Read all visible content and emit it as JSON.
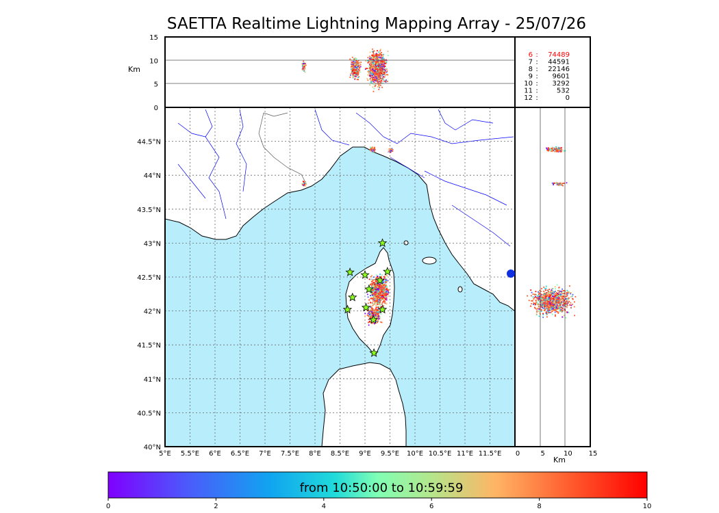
{
  "title": "SAETTA Realtime Lightning Mapping Array - 25/07/26",
  "top_panel": {
    "axis_label": "Km",
    "y_ticks": [
      "0",
      "5",
      "10",
      "15"
    ]
  },
  "right_panel": {
    "axis_label": "Km",
    "x_ticks": [
      "0",
      "5",
      "10",
      "15"
    ]
  },
  "map": {
    "lon_ticks": [
      "5°E",
      "5.5°E",
      "6°E",
      "6.5°E",
      "7°E",
      "7.5°E",
      "8°E",
      "8.5°E",
      "9°E",
      "9.5°E",
      "10°E",
      "10.5°E",
      "11°E",
      "11.5°E"
    ],
    "lat_ticks": [
      "40°N",
      "40.5°N",
      "41°N",
      "41.5°N",
      "42°N",
      "42.5°N",
      "43°N",
      "43.5°N",
      "44°N",
      "44.5°N"
    ],
    "lon_range": [
      5,
      12
    ],
    "lat_range": [
      40,
      45
    ],
    "sea_color": "#b8eefc",
    "land_color": "#ffffff",
    "coast_color": "#000000",
    "river_color": "#0000ff",
    "border_color": "#555555"
  },
  "station_counts": [
    {
      "stations": "6",
      "count": "74489",
      "highlight": true
    },
    {
      "stations": "7",
      "count": "44591",
      "highlight": false
    },
    {
      "stations": "8",
      "count": "22146",
      "highlight": false
    },
    {
      "stations": "9",
      "count": "9601",
      "highlight": false
    },
    {
      "stations": "10",
      "count": "3292",
      "highlight": false
    },
    {
      "stations": "11",
      "count": "532",
      "highlight": false
    },
    {
      "stations": "12",
      "count": "0",
      "highlight": false
    }
  ],
  "stations": [
    {
      "lon": 9.35,
      "lat": 43.0
    },
    {
      "lon": 8.7,
      "lat": 42.57
    },
    {
      "lon": 9.0,
      "lat": 42.53
    },
    {
      "lon": 9.45,
      "lat": 42.58
    },
    {
      "lon": 9.08,
      "lat": 42.32
    },
    {
      "lon": 9.3,
      "lat": 42.45
    },
    {
      "lon": 8.75,
      "lat": 42.2
    },
    {
      "lon": 9.02,
      "lat": 42.05
    },
    {
      "lon": 8.65,
      "lat": 42.02
    },
    {
      "lon": 9.35,
      "lat": 42.02
    },
    {
      "lon": 9.17,
      "lat": 41.87
    },
    {
      "lon": 9.18,
      "lat": 41.38
    }
  ],
  "colorbar": {
    "label": "from 10:50:00 to 10:59:59",
    "ticks": [
      "0",
      "2",
      "4",
      "6",
      "8",
      "10"
    ],
    "range": [
      0,
      10
    ]
  }
}
